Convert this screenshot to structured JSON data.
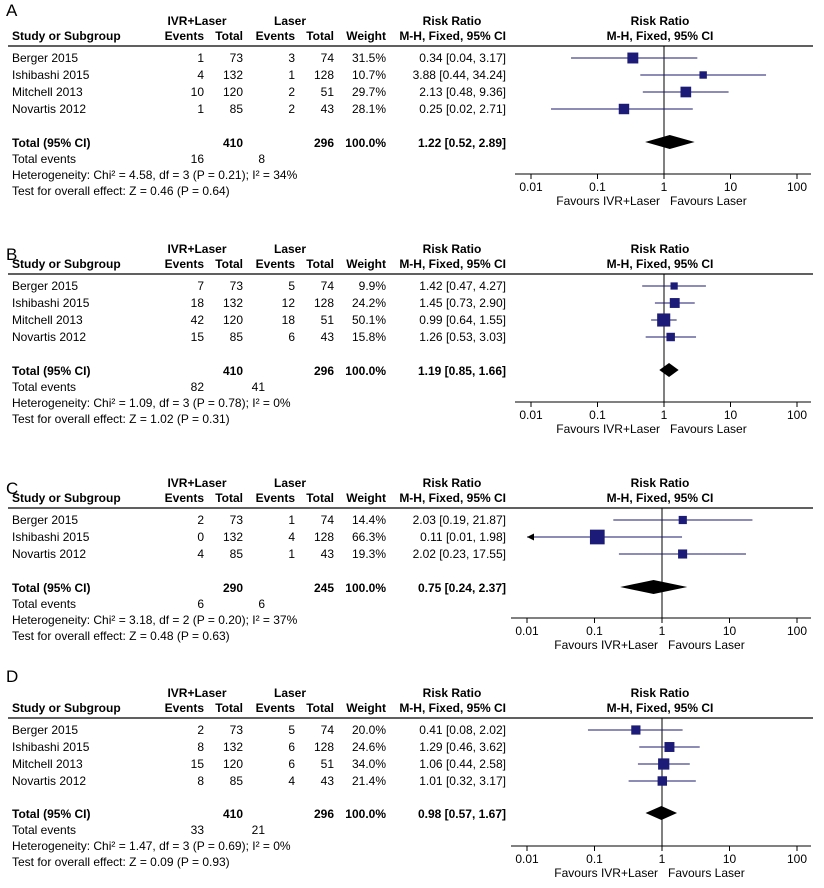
{
  "headers": {
    "study": "Study or Subgroup",
    "group1": "IVR+Laser",
    "group2": "Laser",
    "events": "Events",
    "total": "Total",
    "weight": "Weight",
    "rr_title": "Risk Ratio",
    "rr_method": "M-H, Fixed, 95% CI"
  },
  "axis_ticks": [
    "0.01",
    "0.1",
    "1",
    "10",
    "100"
  ],
  "favours_left": "Favours IVR+Laser",
  "favours_right": "Favours Laser",
  "total_events_label": "Total events",
  "chart_data": [
    {
      "panel": "A",
      "type": "forest",
      "xscale": "log",
      "xlim": [
        0.01,
        100
      ],
      "studies": [
        {
          "name": "Berger 2015",
          "e1": "1",
          "n1": "73",
          "e2": "3",
          "n2": "74",
          "weight": "31.5%",
          "ci_text": "0.34 [0.04, 3.17]",
          "rr": 0.34,
          "lo": 0.04,
          "hi": 3.17,
          "w": 31.5
        },
        {
          "name": "Ishibashi 2015",
          "e1": "4",
          "n1": "132",
          "e2": "1",
          "n2": "128",
          "weight": "10.7%",
          "ci_text": "3.88 [0.44, 34.24]",
          "rr": 3.88,
          "lo": 0.44,
          "hi": 34.24,
          "w": 10.7
        },
        {
          "name": "Mitchell 2013",
          "e1": "10",
          "n1": "120",
          "e2": "2",
          "n2": "51",
          "weight": "29.7%",
          "ci_text": "2.13 [0.48, 9.36]",
          "rr": 2.13,
          "lo": 0.48,
          "hi": 9.36,
          "w": 29.7
        },
        {
          "name": "Novartis 2012",
          "e1": "1",
          "n1": "85",
          "e2": "2",
          "n2": "43",
          "weight": "28.1%",
          "ci_text": "0.25 [0.02, 2.71]",
          "rr": 0.25,
          "lo": 0.02,
          "hi": 2.71,
          "w": 28.1
        }
      ],
      "total": {
        "label": "Total (95% CI)",
        "n1": "410",
        "n2": "296",
        "weight": "100.0%",
        "ci_text": "1.22 [0.52, 2.89]",
        "rr": 1.22,
        "lo": 0.52,
        "hi": 2.89
      },
      "total_events": {
        "e1": "16",
        "e2": "8"
      },
      "heterogeneity": "Heterogeneity: Chi² = 4.58, df = 3 (P = 0.21); I² = 34%",
      "overall_effect": "Test for overall effect: Z = 0.46 (P = 0.64)"
    },
    {
      "panel": "B",
      "type": "forest",
      "xscale": "log",
      "xlim": [
        0.01,
        100
      ],
      "studies": [
        {
          "name": "Berger 2015",
          "e1": "7",
          "n1": "73",
          "e2": "5",
          "n2": "74",
          "weight": "9.9%",
          "ci_text": "1.42 [0.47, 4.27]",
          "rr": 1.42,
          "lo": 0.47,
          "hi": 4.27,
          "w": 9.9
        },
        {
          "name": "Ishibashi 2015",
          "e1": "18",
          "n1": "132",
          "e2": "12",
          "n2": "128",
          "weight": "24.2%",
          "ci_text": "1.45 [0.73, 2.90]",
          "rr": 1.45,
          "lo": 0.73,
          "hi": 2.9,
          "w": 24.2
        },
        {
          "name": "Mitchell 2013",
          "e1": "42",
          "n1": "120",
          "e2": "18",
          "n2": "51",
          "weight": "50.1%",
          "ci_text": "0.99 [0.64, 1.55]",
          "rr": 0.99,
          "lo": 0.64,
          "hi": 1.55,
          "w": 50.1
        },
        {
          "name": "Novartis 2012",
          "e1": "15",
          "n1": "85",
          "e2": "6",
          "n2": "43",
          "weight": "15.8%",
          "ci_text": "1.26 [0.53, 3.03]",
          "rr": 1.26,
          "lo": 0.53,
          "hi": 3.03,
          "w": 15.8
        }
      ],
      "total": {
        "label": "Total (95% CI)",
        "n1": "410",
        "n2": "296",
        "weight": "100.0%",
        "ci_text": "1.19 [0.85, 1.66]",
        "rr": 1.19,
        "lo": 0.85,
        "hi": 1.66
      },
      "total_events": {
        "e1": "82",
        "e2": "41"
      },
      "heterogeneity": "Heterogeneity: Chi² = 1.09, df = 3 (P = 0.78); I² = 0%",
      "overall_effect": "Test for overall effect: Z = 1.02 (P = 0.31)"
    },
    {
      "panel": "C",
      "type": "forest",
      "xscale": "log",
      "xlim": [
        0.01,
        100
      ],
      "studies": [
        {
          "name": "Berger 2015",
          "e1": "2",
          "n1": "73",
          "e2": "1",
          "n2": "74",
          "weight": "14.4%",
          "ci_text": "2.03 [0.19, 21.87]",
          "rr": 2.03,
          "lo": 0.19,
          "hi": 21.87,
          "w": 14.4
        },
        {
          "name": "Ishibashi 2015",
          "e1": "0",
          "n1": "132",
          "e2": "4",
          "n2": "128",
          "weight": "66.3%",
          "ci_text": "0.11 [0.01, 1.98]",
          "rr": 0.11,
          "lo": 0.01,
          "hi": 1.98,
          "w": 66.3
        },
        {
          "name": "Novartis 2012",
          "e1": "4",
          "n1": "85",
          "e2": "1",
          "n2": "43",
          "weight": "19.3%",
          "ci_text": "2.02 [0.23, 17.55]",
          "rr": 2.02,
          "lo": 0.23,
          "hi": 17.55,
          "w": 19.3
        }
      ],
      "total": {
        "label": "Total (95% CI)",
        "n1": "290",
        "n2": "245",
        "weight": "100.0%",
        "ci_text": "0.75 [0.24, 2.37]",
        "rr": 0.75,
        "lo": 0.24,
        "hi": 2.37
      },
      "total_events": {
        "e1": "6",
        "e2": "6"
      },
      "heterogeneity": "Heterogeneity: Chi² = 3.18, df = 2 (P = 0.20); I² = 37%",
      "overall_effect": "Test for overall effect: Z = 0.48 (P = 0.63)"
    },
    {
      "panel": "D",
      "type": "forest",
      "xscale": "log",
      "xlim": [
        0.01,
        100
      ],
      "studies": [
        {
          "name": "Berger 2015",
          "e1": "2",
          "n1": "73",
          "e2": "5",
          "n2": "74",
          "weight": "20.0%",
          "ci_text": "0.41 [0.08, 2.02]",
          "rr": 0.41,
          "lo": 0.08,
          "hi": 2.02,
          "w": 20.0
        },
        {
          "name": "Ishibashi 2015",
          "e1": "8",
          "n1": "132",
          "e2": "6",
          "n2": "128",
          "weight": "24.6%",
          "ci_text": "1.29 [0.46, 3.62]",
          "rr": 1.29,
          "lo": 0.46,
          "hi": 3.62,
          "w": 24.6
        },
        {
          "name": "Mitchell 2013",
          "e1": "15",
          "n1": "120",
          "e2": "6",
          "n2": "51",
          "weight": "34.0%",
          "ci_text": "1.06 [0.44, 2.58]",
          "rr": 1.06,
          "lo": 0.44,
          "hi": 2.58,
          "w": 34.0
        },
        {
          "name": "Novartis 2012",
          "e1": "8",
          "n1": "85",
          "e2": "4",
          "n2": "43",
          "weight": "21.4%",
          "ci_text": "1.01 [0.32, 3.17]",
          "rr": 1.01,
          "lo": 0.32,
          "hi": 3.17,
          "w": 21.4
        }
      ],
      "total": {
        "label": "Total (95% CI)",
        "n1": "410",
        "n2": "296",
        "weight": "100.0%",
        "ci_text": "0.98 [0.57, 1.67]",
        "rr": 0.98,
        "lo": 0.57,
        "hi": 1.67
      },
      "total_events": {
        "e1": "33",
        "e2": "21"
      },
      "heterogeneity": "Heterogeneity: Chi² = 1.47, df = 3 (P = 0.69); I² = 0%",
      "overall_effect": "Test for overall effect: Z = 0.09 (P = 0.93)"
    }
  ]
}
